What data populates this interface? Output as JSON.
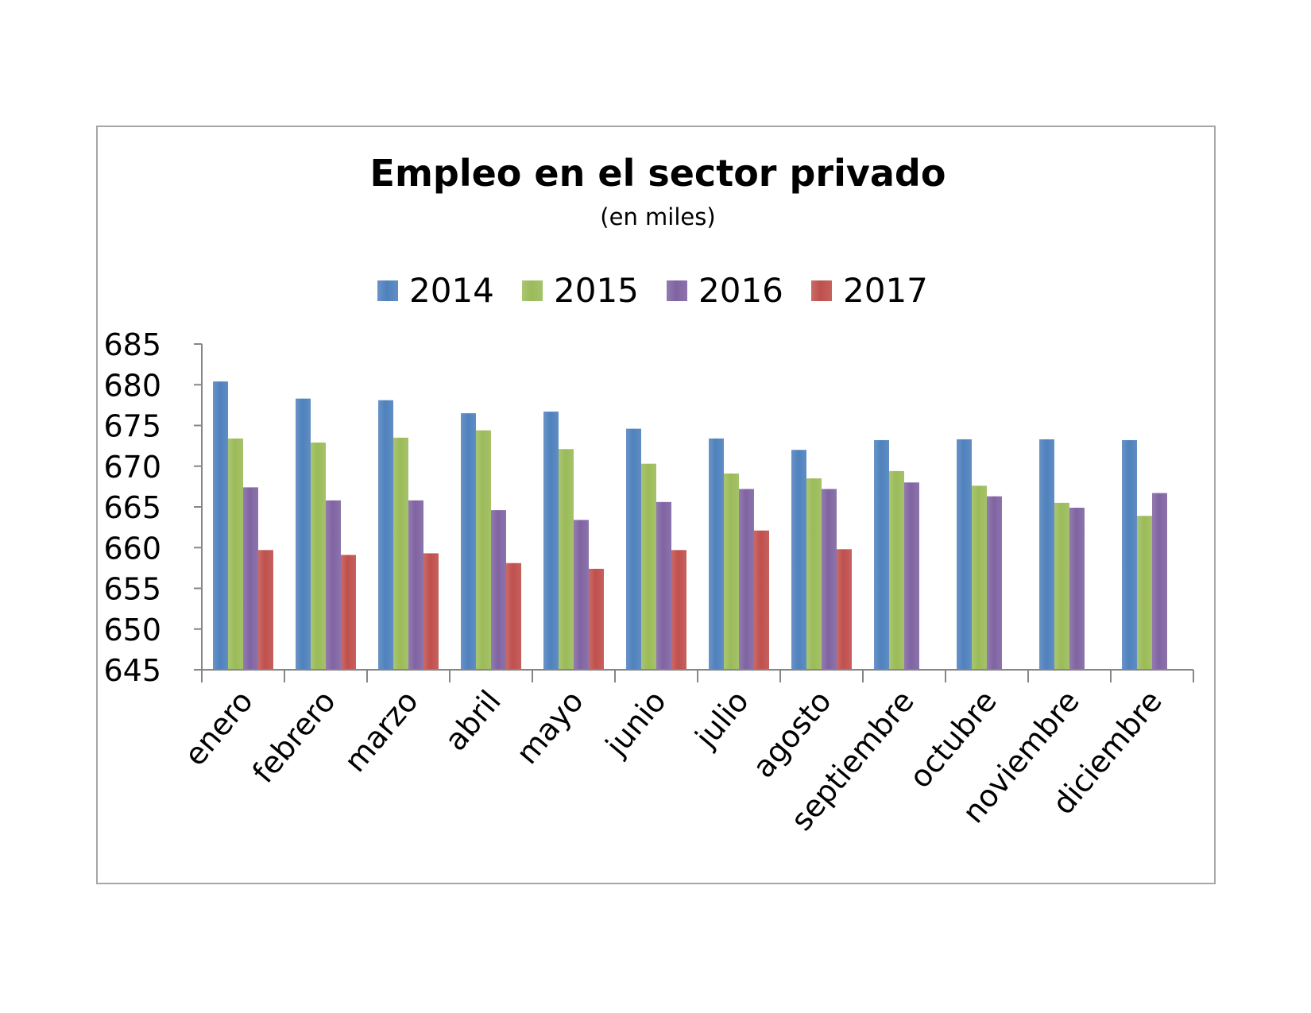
{
  "chart_data": {
    "type": "bar",
    "title": "Empleo en el sector privado",
    "subtitle": "(en miles)",
    "categories": [
      "enero",
      "febrero",
      "marzo",
      "abril",
      "mayo",
      "junio",
      "julio",
      "agosto",
      "septiembre",
      "octubre",
      "noviembre",
      "diciembre"
    ],
    "series": [
      {
        "name": "2014",
        "color": "#4f81bd",
        "values": [
          680.4,
          678.3,
          678.1,
          676.5,
          676.7,
          674.6,
          673.4,
          672.0,
          673.2,
          673.3,
          673.3,
          673.2
        ]
      },
      {
        "name": "2015",
        "color": "#9bbb59",
        "values": [
          673.4,
          672.9,
          673.5,
          674.4,
          672.1,
          670.3,
          669.1,
          668.5,
          669.4,
          667.6,
          665.5,
          663.9
        ]
      },
      {
        "name": "2016",
        "color": "#8064a2",
        "values": [
          667.4,
          665.8,
          665.8,
          664.6,
          663.4,
          665.6,
          667.2,
          667.2,
          668.0,
          666.3,
          664.9,
          666.7
        ]
      },
      {
        "name": "2017",
        "color": "#c0504d",
        "values": [
          659.7,
          659.1,
          659.3,
          658.1,
          657.4,
          659.7,
          662.1,
          659.8,
          null,
          null,
          null,
          null
        ]
      }
    ],
    "ylim": [
      645,
      685
    ],
    "yticks": [
      645,
      650,
      655,
      660,
      665,
      670,
      675,
      680,
      685
    ],
    "xlabel": "",
    "ylabel": "",
    "legend_position": "top",
    "grid": false
  }
}
